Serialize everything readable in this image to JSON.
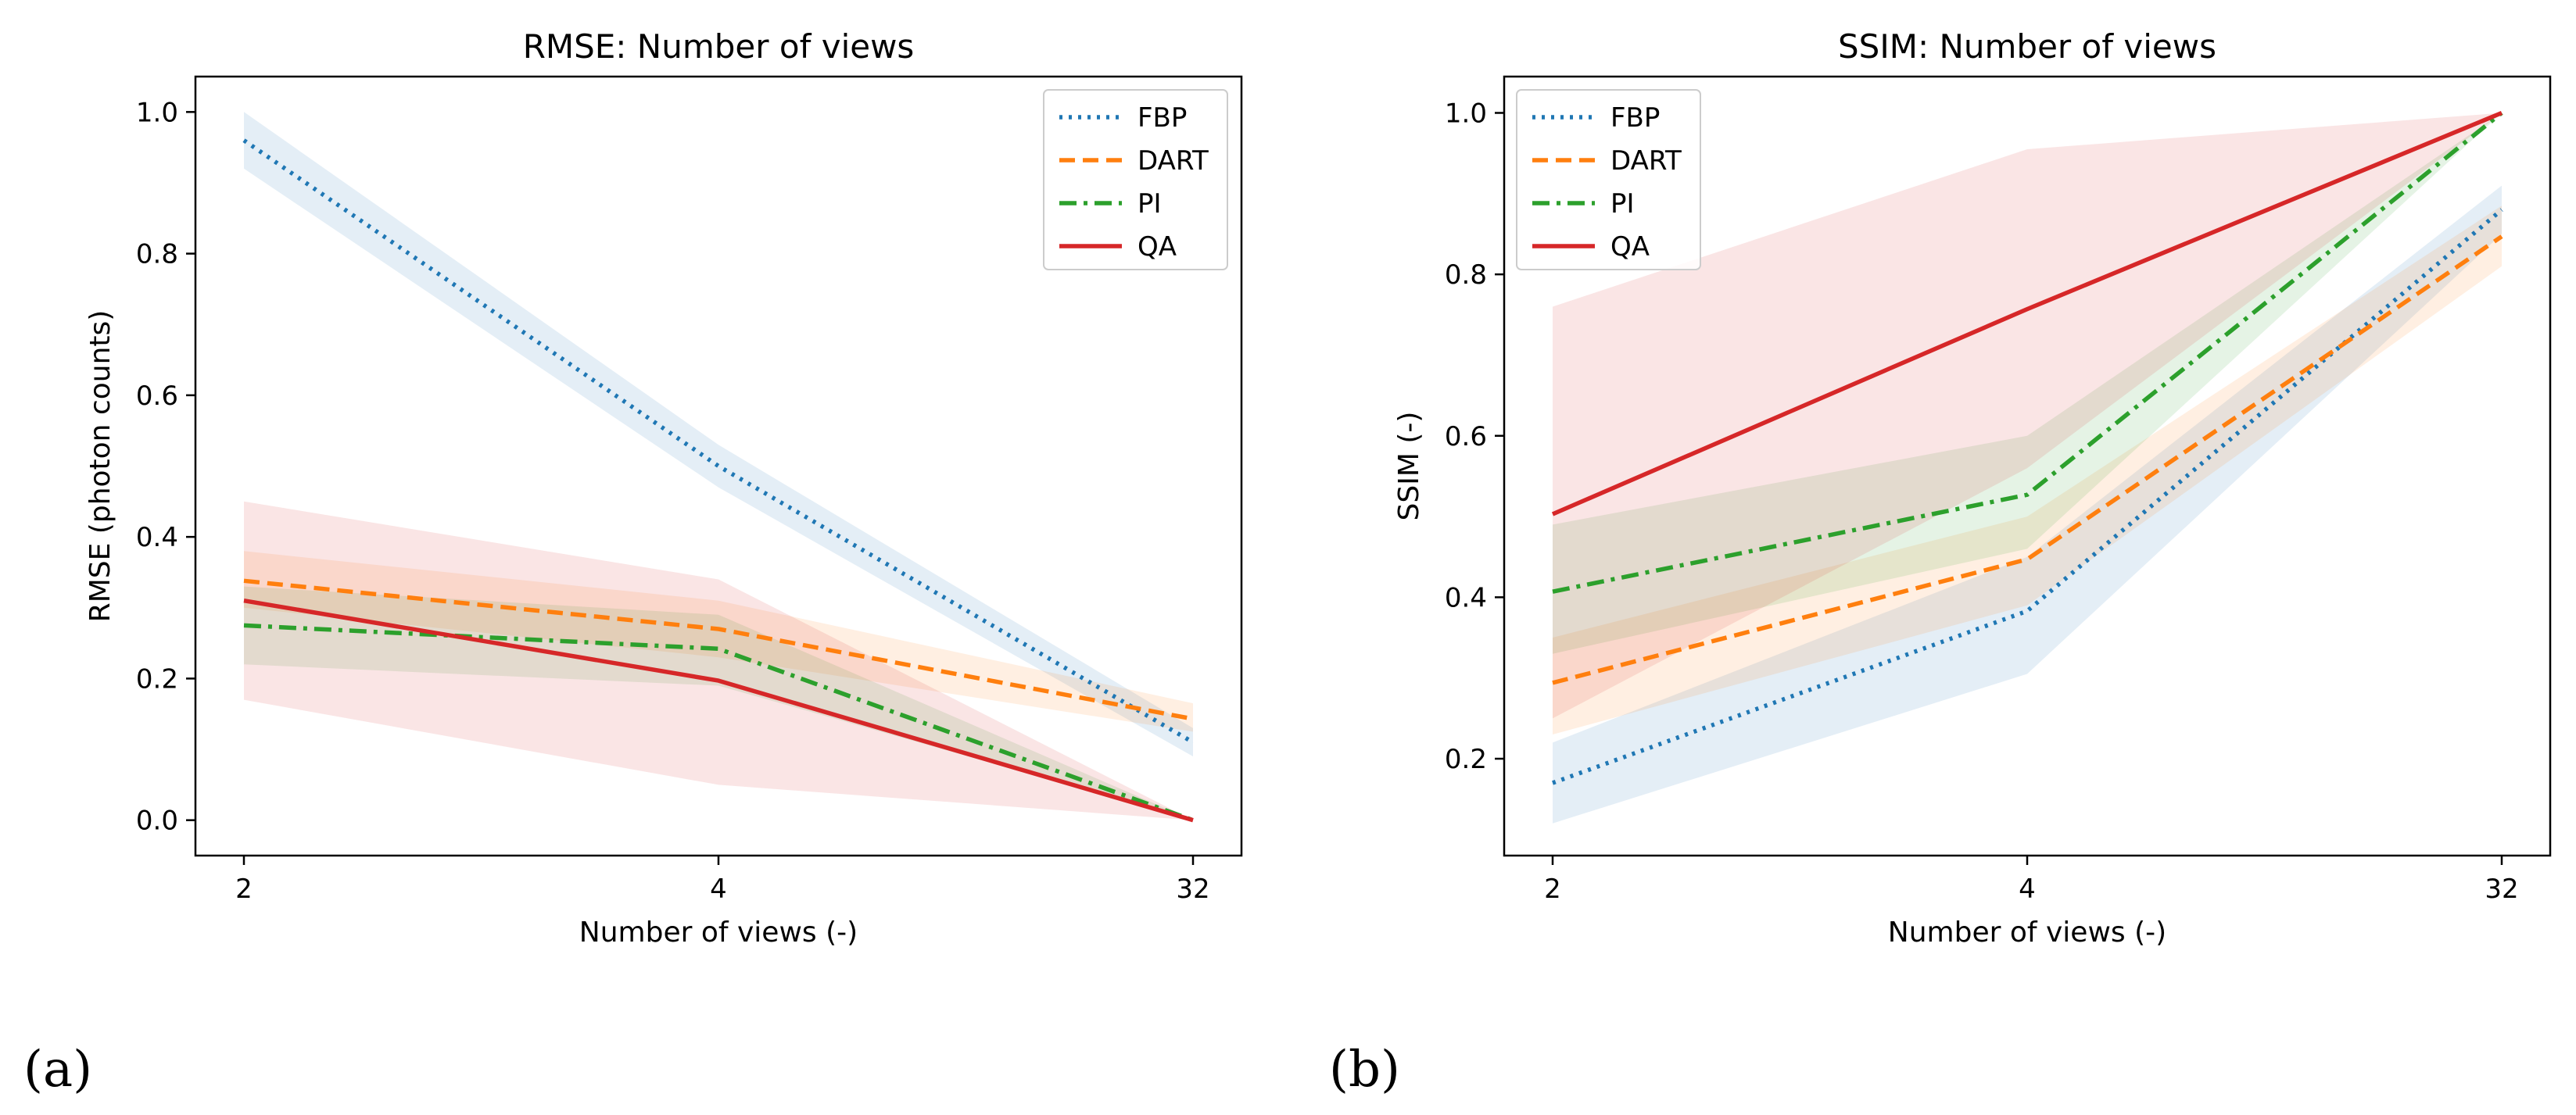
{
  "panels": {
    "a": {
      "letter": "(a)"
    },
    "b": {
      "letter": "(b)"
    }
  },
  "chart_data": [
    {
      "type": "line",
      "title": "RMSE: Number of views",
      "xlabel": "Number of views (-)",
      "ylabel": "RMSE (photon counts)",
      "categories": [
        "2",
        "4",
        "32"
      ],
      "ylim": [
        -0.05,
        1.05
      ],
      "yticks": [
        "0.0",
        "0.2",
        "0.4",
        "0.6",
        "0.8",
        "1.0"
      ],
      "legend_position": "top-right",
      "series": [
        {
          "name": "FBP",
          "style": "dotted",
          "color": "#1f77b4",
          "values": [
            0.96,
            0.5,
            0.11
          ],
          "lower": [
            0.92,
            0.47,
            0.09
          ],
          "upper": [
            1.0,
            0.53,
            0.13
          ]
        },
        {
          "name": "DART",
          "style": "dashed",
          "color": "#ff7f0e",
          "values": [
            0.338,
            0.27,
            0.143
          ],
          "lower": [
            0.3,
            0.23,
            0.125
          ],
          "upper": [
            0.38,
            0.31,
            0.165
          ]
        },
        {
          "name": "PI",
          "style": "dashdot",
          "color": "#2ca02c",
          "values": [
            0.275,
            0.242,
            0.0
          ],
          "lower": [
            0.22,
            0.19,
            0.0
          ],
          "upper": [
            0.33,
            0.29,
            0.0
          ]
        },
        {
          "name": "QA",
          "style": "solid",
          "color": "#d62728",
          "values": [
            0.31,
            0.197,
            0.0
          ],
          "lower": [
            0.17,
            0.05,
            0.0
          ],
          "upper": [
            0.45,
            0.34,
            0.0
          ]
        }
      ]
    },
    {
      "type": "line",
      "title": "SSIM: Number of views",
      "xlabel": "Number of views (-)",
      "ylabel": "SSIM (-)",
      "categories": [
        "2",
        "4",
        "32"
      ],
      "ylim": [
        0.08,
        1.045
      ],
      "yticks": [
        "0.2",
        "0.4",
        "0.6",
        "0.8",
        "1.0"
      ],
      "legend_position": "top-left",
      "series": [
        {
          "name": "FBP",
          "style": "dotted",
          "color": "#1f77b4",
          "values": [
            0.17,
            0.383,
            0.88
          ],
          "lower": [
            0.12,
            0.305,
            0.85
          ],
          "upper": [
            0.22,
            0.45,
            0.91
          ]
        },
        {
          "name": "DART",
          "style": "dashed",
          "color": "#ff7f0e",
          "values": [
            0.294,
            0.447,
            0.847
          ],
          "lower": [
            0.23,
            0.39,
            0.81
          ],
          "upper": [
            0.35,
            0.5,
            0.885
          ]
        },
        {
          "name": "PI",
          "style": "dashdot",
          "color": "#2ca02c",
          "values": [
            0.407,
            0.527,
            1.0
          ],
          "lower": [
            0.33,
            0.46,
            1.0
          ],
          "upper": [
            0.49,
            0.6,
            1.0
          ]
        },
        {
          "name": "QA",
          "style": "solid",
          "color": "#d62728",
          "values": [
            0.503,
            0.757,
            1.0
          ],
          "lower": [
            0.25,
            0.56,
            1.0
          ],
          "upper": [
            0.76,
            0.955,
            1.0
          ]
        }
      ]
    }
  ]
}
